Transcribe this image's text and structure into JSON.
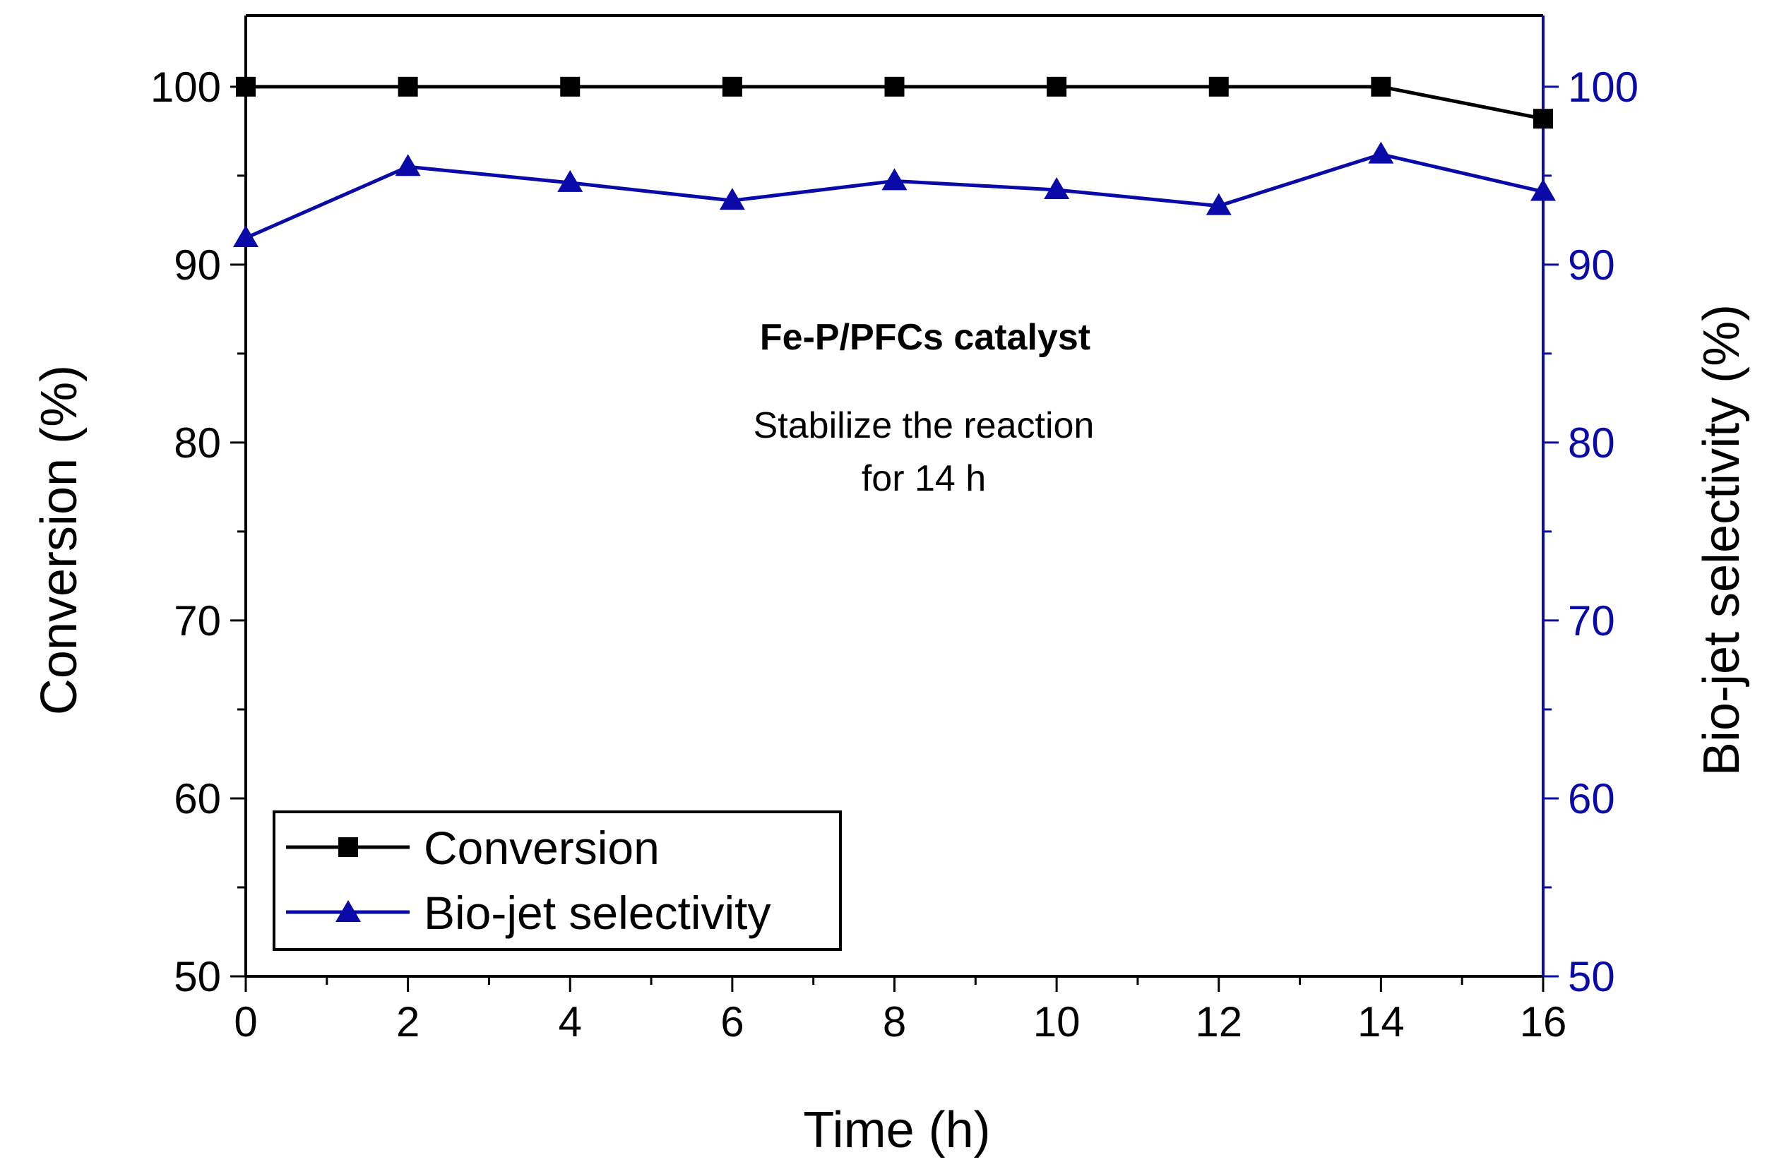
{
  "chart_data": {
    "type": "line",
    "title": "",
    "xlabel": "Time (h)",
    "ylabel": "Conversion (%)",
    "y2label": "Bio-jet selectivity (%)",
    "xlim": [
      0,
      16
    ],
    "ylim": [
      50,
      104
    ],
    "y2lim": [
      50,
      104
    ],
    "xticks": [
      0,
      2,
      4,
      6,
      8,
      10,
      12,
      14,
      16
    ],
    "yticks": [
      50,
      60,
      70,
      80,
      90,
      100
    ],
    "x": [
      0,
      2,
      4,
      6,
      8,
      10,
      12,
      14,
      16
    ],
    "series": [
      {
        "name": "Conversion",
        "axis": "left",
        "marker": "square",
        "color": "#000000",
        "values": [
          100,
          100,
          100,
          100,
          100,
          100,
          100,
          100,
          98.2
        ]
      },
      {
        "name": "Bio-jet selectivity",
        "axis": "right",
        "marker": "triangle",
        "color": "#0a0aa8",
        "values": [
          91.5,
          95.5,
          94.6,
          93.6,
          94.7,
          94.2,
          93.3,
          96.2,
          94.1
        ]
      }
    ],
    "annotations": [
      "Fe-P/PFCs catalyst",
      "Stabilize the reaction",
      "for 14 h"
    ],
    "legend_position": "bottom-left",
    "grid": false
  }
}
